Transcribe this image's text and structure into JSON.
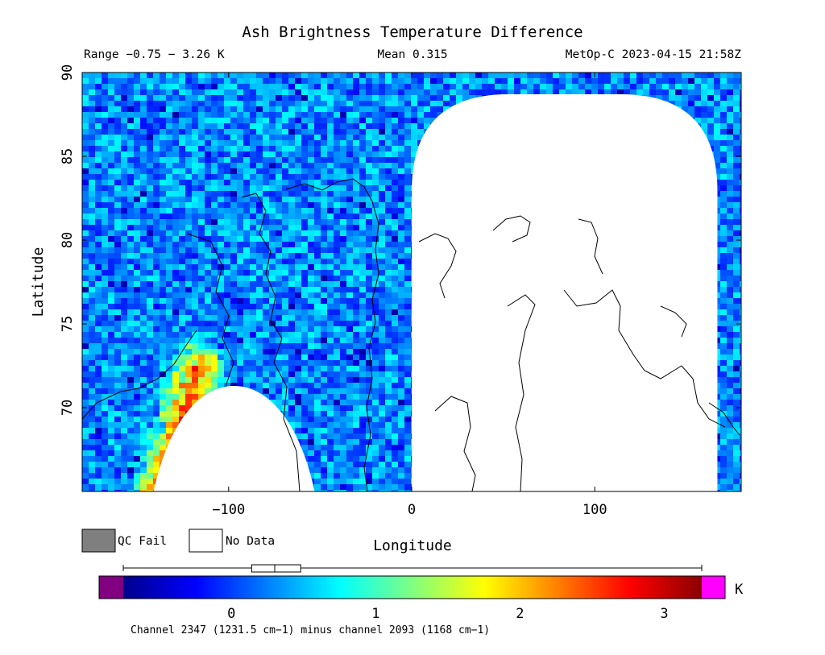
{
  "header": {
    "title": "Ash Brightness Temperature Difference",
    "range_label": "Range −0.75 − 3.26 K",
    "mean_label": "Mean 0.315",
    "satellite_time": "MetOp-C 2023-04-15 21:58Z"
  },
  "legend": {
    "qc_fail_label": "QC Fail",
    "no_data_label": "No Data",
    "qc_fail_color": "#7f7f7f",
    "no_data_color": "#ffffff"
  },
  "colorbar": {
    "unit": "K",
    "caption": "Channel 2347 (1231.5 cm−1) minus channel 2093 (1168 cm−1)",
    "range": [
      -0.75,
      3.26
    ],
    "ticks": [
      {
        "value": 0,
        "label": "0"
      },
      {
        "value": 1,
        "label": "1"
      },
      {
        "value": 2,
        "label": "2"
      },
      {
        "value": 3,
        "label": "3"
      }
    ],
    "under_color": "#800080",
    "over_color": "#ff00ff",
    "stops": [
      "#00008b",
      "#0000ff",
      "#0080ff",
      "#00ffff",
      "#80ff80",
      "#ffff00",
      "#ff8000",
      "#ff0000",
      "#8b0000"
    ],
    "boxplot": {
      "whisker_low": -0.75,
      "q1": 0.14,
      "median": 0.3,
      "q3": 0.48,
      "whisker_high": 3.26
    }
  },
  "chart_data": {
    "type": "heatmap",
    "title": "Ash Brightness Temperature Difference",
    "xlabel": "Longitude",
    "ylabel": "Latitude",
    "xlim": [
      -180,
      180
    ],
    "ylim": [
      65,
      90
    ],
    "x_ticks": [
      {
        "value": -100,
        "label": "−100"
      },
      {
        "value": 0,
        "label": "0"
      },
      {
        "value": 100,
        "label": "100"
      }
    ],
    "y_ticks": [
      {
        "value": 70,
        "label": "70"
      },
      {
        "value": 75,
        "label": "75"
      },
      {
        "value": 80,
        "label": "80"
      },
      {
        "value": 85,
        "label": "85"
      },
      {
        "value": 90,
        "label": "90"
      }
    ],
    "value_range": [
      -0.75,
      3.26
    ],
    "mean": 0.315,
    "typical_value": 0.3,
    "no_data_regions": [
      {
        "name": "no-data-east",
        "lon_min": 0,
        "lon_max": 167,
        "lat_min": 65,
        "lat_max": 88.7
      },
      {
        "name": "no-data-southwest",
        "lon_min": -141,
        "lon_max": -53,
        "lat_min": 65,
        "lat_max": 71.3
      }
    ],
    "elevated_band": {
      "lon_from": -140,
      "lat_from": 65,
      "lon_to": -118,
      "lat_to": 72.5,
      "peak_value": 3.0
    }
  }
}
